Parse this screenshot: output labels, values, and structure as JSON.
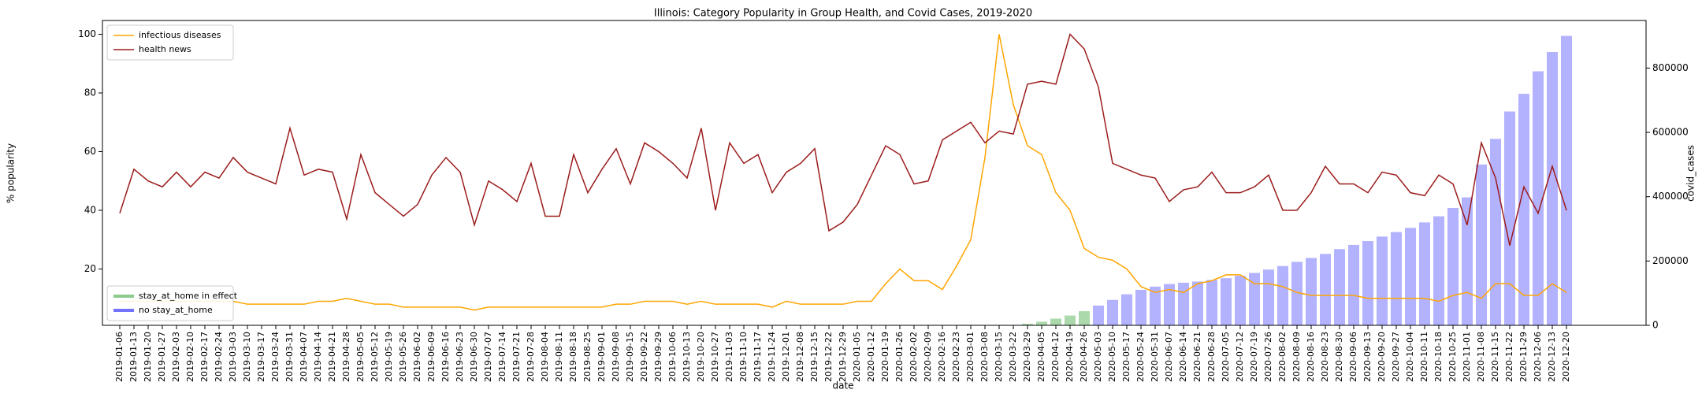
{
  "chart_data": {
    "type": "combo",
    "title": "Illinois: Category Popularity in Group Health, and Covid Cases, 2019-2020",
    "xlabel": "date",
    "ylabel": "% popularity",
    "y2label": "covid_cases",
    "categories": [
      "2019-01-06",
      "2019-01-13",
      "2019-01-20",
      "2019-01-27",
      "2019-02-03",
      "2019-02-10",
      "2019-02-17",
      "2019-02-24",
      "2019-03-03",
      "2019-03-10",
      "2019-03-17",
      "2019-03-24",
      "2019-03-31",
      "2019-04-07",
      "2019-04-14",
      "2019-04-21",
      "2019-04-28",
      "2019-05-05",
      "2019-05-12",
      "2019-05-19",
      "2019-05-26",
      "2019-06-02",
      "2019-06-09",
      "2019-06-16",
      "2019-06-23",
      "2019-06-30",
      "2019-07-07",
      "2019-07-14",
      "2019-07-21",
      "2019-07-28",
      "2019-08-04",
      "2019-08-11",
      "2019-08-18",
      "2019-08-25",
      "2019-09-01",
      "2019-09-08",
      "2019-09-15",
      "2019-09-22",
      "2019-09-29",
      "2019-10-06",
      "2019-10-13",
      "2019-10-20",
      "2019-10-27",
      "2019-11-03",
      "2019-11-10",
      "2019-11-17",
      "2019-11-24",
      "2019-12-01",
      "2019-12-08",
      "2019-12-15",
      "2019-12-22",
      "2019-12-29",
      "2020-01-05",
      "2020-01-12",
      "2020-01-19",
      "2020-01-26",
      "2020-02-02",
      "2020-02-09",
      "2020-02-16",
      "2020-02-23",
      "2020-03-01",
      "2020-03-08",
      "2020-03-15",
      "2020-03-22",
      "2020-03-29",
      "2020-04-05",
      "2020-04-12",
      "2020-04-19",
      "2020-04-26",
      "2020-05-03",
      "2020-05-10",
      "2020-05-17",
      "2020-05-24",
      "2020-05-31",
      "2020-06-07",
      "2020-06-14",
      "2020-06-21",
      "2020-06-28",
      "2020-07-05",
      "2020-07-12",
      "2020-07-19",
      "2020-07-26",
      "2020-08-02",
      "2020-08-09",
      "2020-08-16",
      "2020-08-23",
      "2020-08-30",
      "2020-09-06",
      "2020-09-13",
      "2020-09-20",
      "2020-09-27",
      "2020-10-04",
      "2020-10-11",
      "2020-10-18",
      "2020-10-25",
      "2020-11-01",
      "2020-11-08",
      "2020-11-15",
      "2020-11-22",
      "2020-11-29",
      "2020-12-06",
      "2020-12-13",
      "2020-12-20"
    ],
    "series": [
      {
        "name": "infectious diseases",
        "type": "line",
        "color": "#ffa500",
        "legend": "upper left",
        "values": [
          9,
          9,
          9,
          9,
          9,
          9,
          9,
          9,
          9,
          8,
          8,
          8,
          8,
          8,
          9,
          9,
          10,
          9,
          8,
          8,
          7,
          7,
          7,
          7,
          7,
          6,
          7,
          7,
          7,
          7,
          7,
          7,
          7,
          7,
          7,
          8,
          8,
          9,
          9,
          9,
          8,
          9,
          8,
          8,
          8,
          8,
          7,
          9,
          8,
          8,
          8,
          8,
          9,
          9,
          15,
          20,
          16,
          16,
          13,
          21,
          30,
          58,
          100,
          76,
          62,
          59,
          46,
          40,
          27,
          24,
          23,
          20,
          14,
          12,
          13,
          12,
          15,
          16,
          18,
          18,
          15,
          15,
          14,
          12,
          11,
          11,
          11,
          11,
          10,
          10,
          10,
          10,
          10,
          9,
          11,
          12,
          10,
          15,
          15,
          11,
          11,
          15,
          12
        ]
      },
      {
        "name": "health news",
        "type": "line",
        "color": "#9b1c1c",
        "legend": "upper left",
        "values": [
          39,
          54,
          50,
          48,
          53,
          48,
          53,
          51,
          58,
          53,
          51,
          49,
          68,
          52,
          54,
          53,
          37,
          59,
          46,
          42,
          38,
          42,
          52,
          58,
          53,
          35,
          50,
          47,
          43,
          56,
          38,
          38,
          59,
          46,
          54,
          61,
          49,
          63,
          60,
          56,
          51,
          68,
          40,
          63,
          56,
          59,
          46,
          53,
          56,
          61,
          33,
          36,
          42,
          52,
          62,
          59,
          49,
          50,
          64,
          67,
          70,
          63,
          67,
          66,
          83,
          84,
          83,
          100,
          95,
          82,
          56,
          54,
          52,
          51,
          43,
          47,
          48,
          53,
          46,
          46,
          48,
          52,
          40,
          40,
          46,
          55,
          49,
          49,
          46,
          53,
          52,
          46,
          45,
          52,
          49,
          35,
          63,
          51,
          28,
          48,
          39,
          55,
          40
        ]
      },
      {
        "name": "stay_at_home in effect",
        "type": "bar",
        "axis": "y2",
        "color": "#2ca02c",
        "opacity": 0.4,
        "legend": "lower left",
        "values": [
          null,
          null,
          null,
          null,
          null,
          null,
          null,
          null,
          null,
          null,
          null,
          null,
          null,
          null,
          null,
          null,
          null,
          null,
          null,
          null,
          null,
          null,
          null,
          null,
          null,
          null,
          null,
          null,
          null,
          null,
          null,
          null,
          null,
          null,
          null,
          null,
          null,
          null,
          null,
          null,
          null,
          null,
          null,
          null,
          null,
          null,
          null,
          null,
          null,
          null,
          null,
          null,
          null,
          null,
          null,
          null,
          null,
          null,
          null,
          null,
          null,
          null,
          null,
          null,
          4600,
          11300,
          20900,
          30400,
          43900,
          null,
          null,
          null,
          null,
          null,
          null,
          null,
          null,
          null,
          null,
          null,
          null,
          null,
          null,
          null,
          null,
          null,
          null,
          null,
          null,
          null,
          null,
          null,
          null,
          null,
          null,
          null,
          null,
          null,
          null,
          null,
          null,
          null,
          null
        ]
      },
      {
        "name": "no stay_at_home",
        "type": "bar",
        "axis": "y2",
        "color": "#0000ff",
        "opacity": 0.3,
        "legend": "lower left",
        "values": [
          null,
          null,
          null,
          null,
          null,
          null,
          null,
          null,
          null,
          null,
          null,
          null,
          null,
          null,
          null,
          null,
          null,
          null,
          null,
          null,
          null,
          null,
          null,
          null,
          null,
          null,
          null,
          null,
          null,
          null,
          null,
          null,
          null,
          null,
          null,
          null,
          null,
          null,
          null,
          null,
          null,
          null,
          null,
          null,
          null,
          null,
          null,
          null,
          null,
          null,
          null,
          null,
          null,
          null,
          null,
          null,
          null,
          null,
          null,
          null,
          null,
          null,
          null,
          null,
          null,
          null,
          null,
          null,
          null,
          61500,
          79000,
          96500,
          110300,
          120300,
          128400,
          132500,
          136100,
          141000,
          146600,
          154100,
          163000,
          173400,
          184300,
          197300,
          209600,
          222000,
          237000,
          250000,
          262000,
          276000,
          290000,
          303000,
          320000,
          339000,
          365000,
          398000,
          500000,
          580000,
          665000,
          720000,
          790000,
          850000,
          900000
        ]
      }
    ],
    "ylim": [
      0.8,
      104.7
    ],
    "yticks": [
      20,
      40,
      60,
      80,
      100
    ],
    "y2lim": [
      0,
      948000
    ],
    "y2ticks": [
      0,
      200000,
      400000,
      600000,
      800000
    ],
    "grid": false
  }
}
